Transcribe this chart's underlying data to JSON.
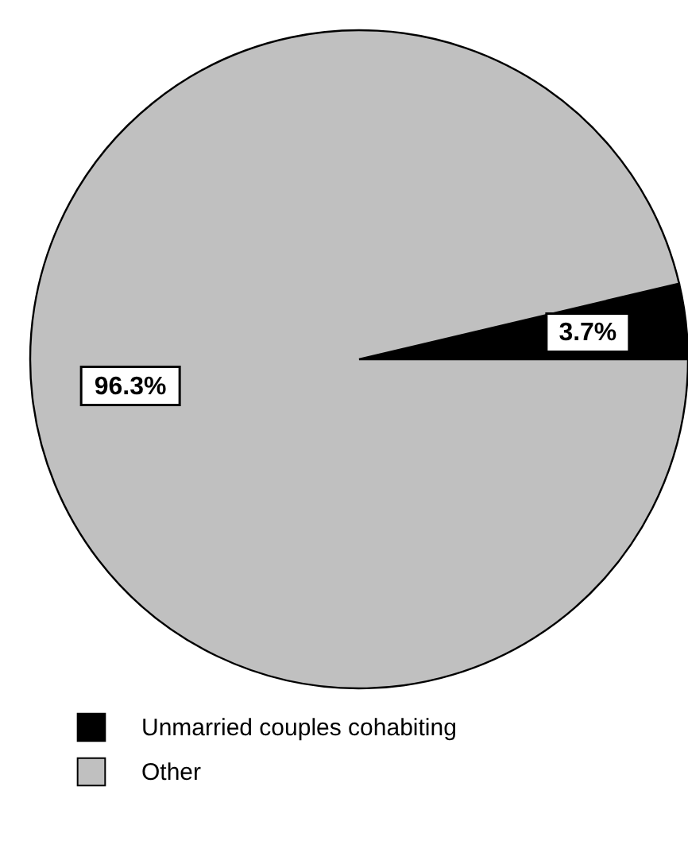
{
  "chart_data": {
    "type": "pie",
    "categories": [
      "Unmarried couples cohabiting",
      "Other"
    ],
    "values": [
      3.7,
      96.3
    ],
    "colors": [
      "#000000",
      "#c0c0c0"
    ],
    "value_labels": [
      "3.7%",
      "96.3%"
    ],
    "legend": "bottom"
  }
}
